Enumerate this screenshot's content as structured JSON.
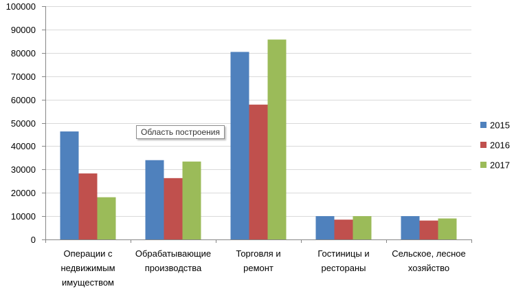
{
  "chart_data": {
    "type": "bar",
    "categories": [
      [
        "Операции с",
        "недвижимым",
        "имуществом"
      ],
      [
        "Обрабатывающие",
        "производства"
      ],
      [
        "Торговля и",
        "ремонт"
      ],
      [
        "Гостиницы и",
        "рестораны"
      ],
      [
        "Сельское, лесное",
        "хозяйство"
      ]
    ],
    "series": [
      {
        "name": "2015",
        "color": "#4f81bd",
        "values": [
          46300,
          34000,
          80400,
          10000,
          10000
        ]
      },
      {
        "name": "2016",
        "color": "#c0504d",
        "values": [
          28300,
          26300,
          57800,
          8500,
          8100
        ]
      },
      {
        "name": "2017",
        "color": "#9bbb59",
        "values": [
          18100,
          33400,
          85700,
          10000,
          9000
        ]
      }
    ],
    "ylim": [
      0,
      100000
    ],
    "yticks": [
      0,
      10000,
      20000,
      30000,
      40000,
      50000,
      60000,
      70000,
      80000,
      90000,
      100000
    ],
    "grid": true,
    "legend": "right",
    "title": "",
    "xlabel": "",
    "ylabel": ""
  },
  "tooltip": {
    "text": "Область построения"
  }
}
